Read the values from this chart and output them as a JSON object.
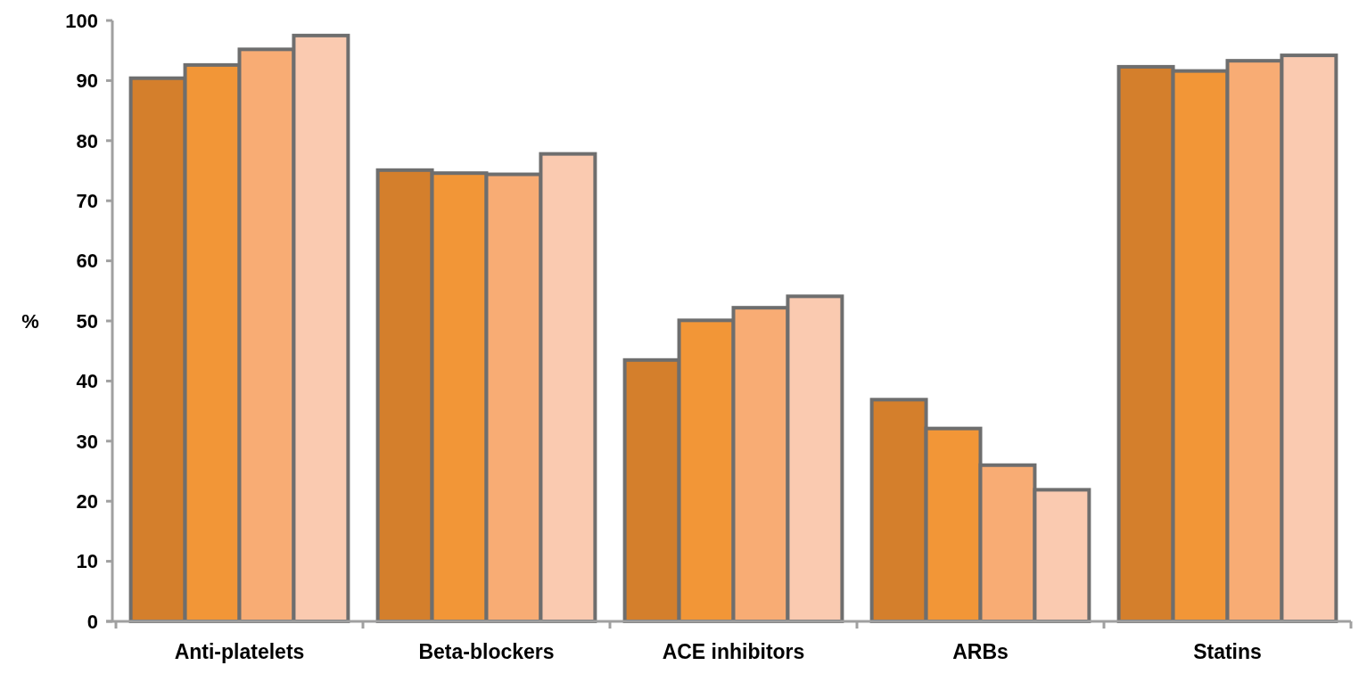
{
  "chart_data": {
    "type": "bar",
    "ylabel": "%",
    "categories": [
      "Anti-platelets",
      "Beta-blockers",
      "ACE inhibitors",
      "ARBs",
      "Statins"
    ],
    "series": [
      {
        "color": "#d47f2c",
        "values": [
          90.4,
          75.1,
          43.5,
          36.9,
          92.3
        ]
      },
      {
        "color": "#f29637",
        "values": [
          92.6,
          74.6,
          50.1,
          32.1,
          91.6
        ]
      },
      {
        "color": "#f8ac74",
        "values": [
          95.2,
          74.4,
          52.2,
          26.0,
          93.3
        ]
      },
      {
        "color": "#facab0",
        "values": [
          97.5,
          77.8,
          54.1,
          21.9,
          94.2
        ]
      }
    ],
    "ylim": [
      0,
      100
    ],
    "yticks": [
      0,
      10,
      20,
      30,
      40,
      50,
      60,
      70,
      80,
      90,
      100
    ],
    "grid": false
  }
}
